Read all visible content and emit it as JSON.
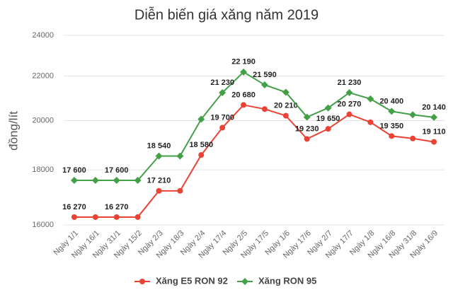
{
  "chart_data": {
    "type": "line",
    "title": "Diễn biến giá xăng năm 2019",
    "y_label": "đồng/lít",
    "categories": [
      "Ngày 1/1",
      "Ngày 16/1",
      "Ngày 31/1",
      "Ngày 15/2",
      "Ngày 2/3",
      "Ngày 18/3",
      "Ngày 2/4",
      "Ngày 17/4",
      "Ngày 2/5",
      "Ngày 17/5",
      "Ngày 1/6",
      "Ngày 17/6",
      "Ngày 2/7",
      "Ngày 17/7",
      "Ngày 1/8",
      "Ngày 16/8",
      "Ngày 31/8",
      "Ngày 16/9"
    ],
    "series": [
      {
        "name": "Xăng E5 RON 92",
        "color": "#ea4335",
        "marker": "circle",
        "values": [
          16270,
          16270,
          16270,
          16270,
          17210,
          17210,
          18580,
          19700,
          20680,
          20500,
          20210,
          19230,
          19650,
          20270,
          19930,
          19350,
          19250,
          19110
        ],
        "value_labels": [
          "16 270",
          null,
          "16 270",
          null,
          "17 210",
          null,
          "18 580",
          "19 700",
          "20 680",
          null,
          "20 210",
          "19 230",
          "19 650",
          "20 270",
          null,
          "19 350",
          null,
          "19 110"
        ]
      },
      {
        "name": "Xăng RON 95",
        "color": "#43a047",
        "marker": "diamond",
        "values": [
          17600,
          17600,
          17600,
          17600,
          18540,
          18540,
          20060,
          21230,
          22190,
          21590,
          21250,
          20150,
          20550,
          21230,
          20950,
          20400,
          20250,
          20140
        ],
        "value_labels": [
          "17 600",
          null,
          "17 600",
          null,
          "18 540",
          null,
          null,
          "21 230",
          "22 190",
          "21 590",
          null,
          null,
          null,
          "21 230",
          null,
          "20 400",
          null,
          "20 140"
        ]
      }
    ],
    "ylim": [
      16000,
      24000
    ],
    "yticks": [
      16000,
      18000,
      20000,
      22000,
      24000
    ],
    "log_scale": true,
    "grid": true,
    "legend": "bottom"
  }
}
